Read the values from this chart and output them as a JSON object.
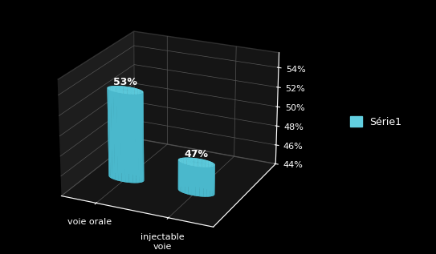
{
  "categories": [
    "voie orale",
    "injectable\nvoie"
  ],
  "values": [
    53,
    47
  ],
  "bar_color_top": "#62cfe0",
  "bar_color_side": "#4ab8cc",
  "bar_color_dark": "#3a9aad",
  "background_color": "#000000",
  "floor_color": "#3a3a3a",
  "wall_color": "#2a2a2a",
  "wall_back_color": "#2a2a2a",
  "text_color": "#ffffff",
  "legend_label": "Série1",
  "legend_color": "#62cfe0",
  "ylim_min": 44,
  "ylim_max": 55,
  "yticks": [
    44,
    46,
    48,
    50,
    52,
    54
  ],
  "bar_labels": [
    "53%",
    "47%"
  ],
  "figsize": [
    5.43,
    3.17
  ],
  "dpi": 100
}
